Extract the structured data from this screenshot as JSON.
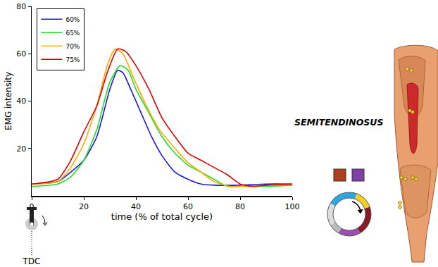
{
  "chart_data": {
    "type": "line",
    "x_label": "time (% of total cycle)",
    "y_label": "EMG intensity",
    "xlim": [
      0,
      100
    ],
    "xticks": [
      0,
      20,
      40,
      60,
      80,
      100
    ],
    "ylim": [
      0,
      80
    ],
    "yticks": [
      20,
      40,
      60,
      80
    ],
    "grid": false,
    "legend": "top left",
    "series": [
      {
        "name": "60%",
        "color": "#1a1adc",
        "x": [
          0,
          10,
          15,
          20,
          25,
          30,
          33,
          35,
          38,
          42,
          46,
          50,
          55,
          60,
          65,
          70,
          80,
          90,
          100
        ],
        "values": [
          5,
          6,
          10,
          15,
          25,
          45,
          53,
          52,
          45,
          35,
          25,
          17,
          10,
          7,
          5,
          4.5,
          4.5,
          5,
          5
        ]
      },
      {
        "name": "65%",
        "color": "#22dd22",
        "x": [
          0,
          10,
          15,
          20,
          25,
          30,
          34,
          37,
          40,
          45,
          50,
          55,
          60,
          65,
          70,
          75,
          80,
          90,
          100
        ],
        "values": [
          4,
          5,
          8,
          15,
          28,
          48,
          55,
          53,
          45,
          35,
          25,
          18,
          13,
          10,
          7,
          4,
          4,
          4,
          4.5
        ]
      },
      {
        "name": "70%",
        "color": "#ffaa00",
        "x": [
          0,
          10,
          15,
          20,
          25,
          29,
          32,
          35,
          39,
          44,
          49,
          55,
          60,
          65,
          70,
          76,
          80,
          90,
          100
        ],
        "values": [
          5,
          6,
          12,
          22,
          38,
          55,
          62,
          60,
          50,
          38,
          28,
          20,
          14,
          10,
          6,
          4,
          4,
          4.5,
          5
        ]
      },
      {
        "name": "75%",
        "color": "#dd0000",
        "x": [
          0,
          10,
          15,
          20,
          25,
          29,
          33,
          36,
          40,
          45,
          50,
          55,
          60,
          65,
          70,
          75,
          80,
          85,
          90,
          100
        ],
        "values": [
          5,
          7,
          15,
          27,
          38,
          52,
          62,
          61,
          55,
          45,
          33,
          25,
          18,
          15,
          12,
          9,
          5,
          4,
          4.5,
          5
        ]
      }
    ],
    "annotations": [
      {
        "text": "SEMITENDINOSUS"
      },
      {
        "text": "TDC"
      }
    ]
  }
}
